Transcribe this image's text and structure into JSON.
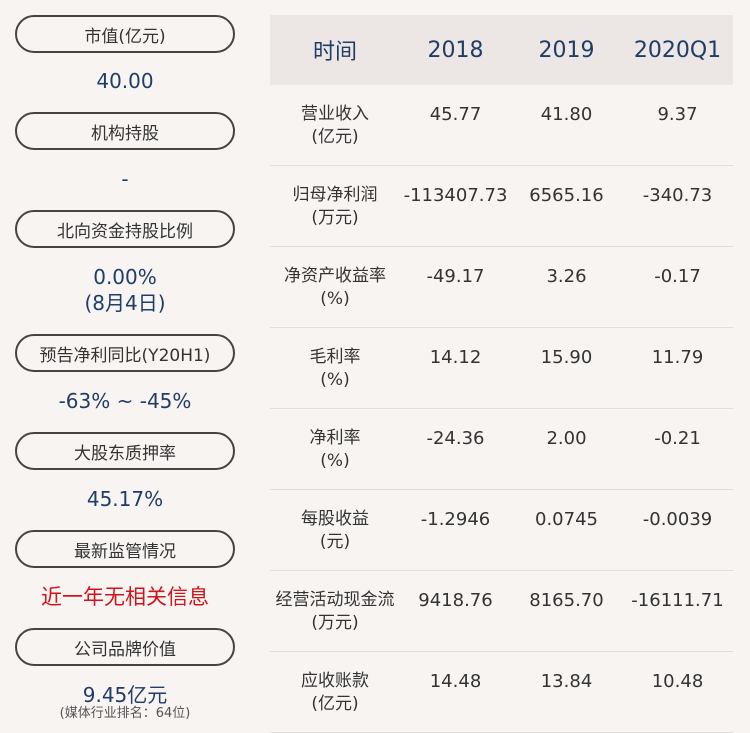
{
  "left_panel": {
    "items": [
      {
        "label": "市值(亿元)",
        "value": "40.00"
      },
      {
        "label": "机构持股",
        "value": "-"
      },
      {
        "label": "北向资金持股比例",
        "value": "0.00%",
        "value_line2": "(8月4日)"
      },
      {
        "label": "预告净利同比(Y20H1)",
        "value": "-63% ~ -45%"
      },
      {
        "label": "大股东质押率",
        "value": "45.17%"
      },
      {
        "label": "最新监管情况",
        "value": "近一年无相关信息"
      },
      {
        "label": "公司品牌价值",
        "value": "9.45亿元",
        "note": "(媒体行业排名：64位)"
      }
    ]
  },
  "table": {
    "headers": [
      "时间",
      "2018",
      "2019",
      "2020Q1"
    ],
    "rows": [
      {
        "label": "营业收入",
        "unit": "(亿元)",
        "values": [
          "45.77",
          "41.80",
          "9.37"
        ]
      },
      {
        "label": "归母净利润",
        "unit": "(万元)",
        "values": [
          "-113407.73",
          "6565.16",
          "-340.73"
        ]
      },
      {
        "label": "净资产收益率",
        "unit": "(%)",
        "values": [
          "-49.17",
          "3.26",
          "-0.17"
        ]
      },
      {
        "label": "毛利率",
        "unit": "(%)",
        "values": [
          "14.12",
          "15.90",
          "11.79"
        ]
      },
      {
        "label": "净利率",
        "unit": "(%)",
        "values": [
          "-24.36",
          "2.00",
          "-0.21"
        ]
      },
      {
        "label": "每股收益",
        "unit": "(元)",
        "values": [
          "-1.2946",
          "0.0745",
          "-0.0039"
        ]
      },
      {
        "label": "经营活动现金流",
        "unit": "(万元)",
        "values": [
          "9418.76",
          "8165.70",
          "-16111.71"
        ]
      },
      {
        "label": "应收账款",
        "unit": "(亿元)",
        "values": [
          "14.48",
          "13.84",
          "10.48"
        ]
      }
    ]
  },
  "colors": {
    "value_blue": "#1f3d66",
    "alert_red": "#d0141c",
    "background": "#f8f4f2",
    "header_bg": "#ece7e5"
  }
}
